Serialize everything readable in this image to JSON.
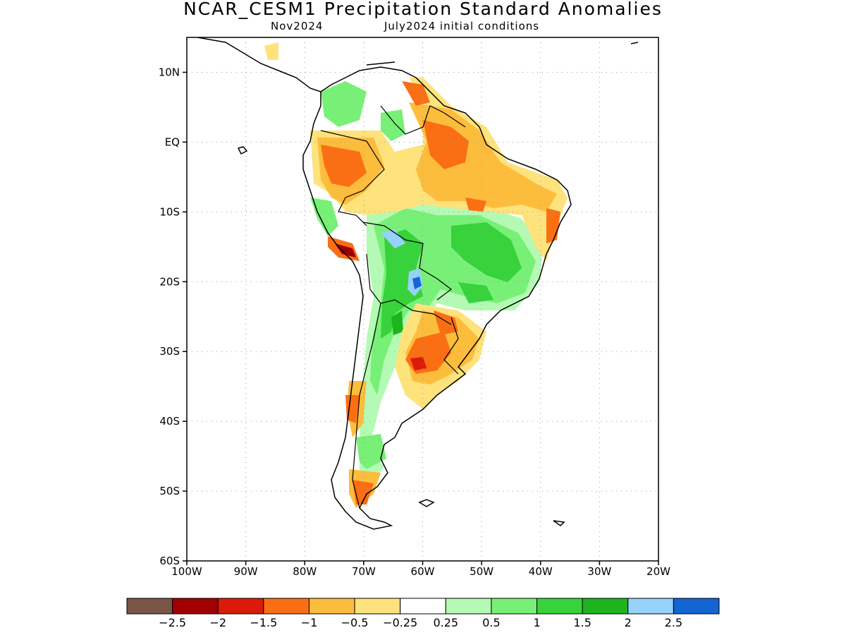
{
  "title": "NCAR_CESM1 Precipitation Standard Anomalies",
  "subtitle": {
    "left": "Nov2024",
    "right": "July2024 initial conditions"
  },
  "map": {
    "lon_range": [
      -100,
      -20
    ],
    "lat_range": [
      -60,
      15
    ],
    "grid": "dotted",
    "lat_ticks": [
      {
        "value": 10,
        "label": "10N"
      },
      {
        "value": 0,
        "label": "EQ"
      },
      {
        "value": -10,
        "label": "10S"
      },
      {
        "value": -20,
        "label": "20S"
      },
      {
        "value": -30,
        "label": "30S"
      },
      {
        "value": -40,
        "label": "40S"
      },
      {
        "value": -50,
        "label": "50S"
      },
      {
        "value": -60,
        "label": "60S"
      }
    ],
    "lon_ticks": [
      {
        "value": -100,
        "label": "100W"
      },
      {
        "value": -90,
        "label": "90W"
      },
      {
        "value": -80,
        "label": "80W"
      },
      {
        "value": -70,
        "label": "70W"
      },
      {
        "value": -60,
        "label": "60W"
      },
      {
        "value": -50,
        "label": "50W"
      },
      {
        "value": -40,
        "label": "40W"
      },
      {
        "value": -30,
        "label": "30W"
      },
      {
        "value": -20,
        "label": "20W"
      }
    ]
  },
  "colorbar": {
    "colors": [
      "#7a5548",
      "#a00000",
      "#dc1a0a",
      "#fa6e14",
      "#fdbd3c",
      "#fee27c",
      "#ffffff",
      "#b4fab4",
      "#78f078",
      "#37d23c",
      "#1eb41e",
      "#96d2fa",
      "#1464d2"
    ],
    "labels": [
      "−2.5",
      "−2",
      "−1.5",
      "−1",
      "−0.5",
      "−0.25",
      "0.25",
      "0.5",
      "1",
      "1.5",
      "2",
      "2.5"
    ]
  }
}
